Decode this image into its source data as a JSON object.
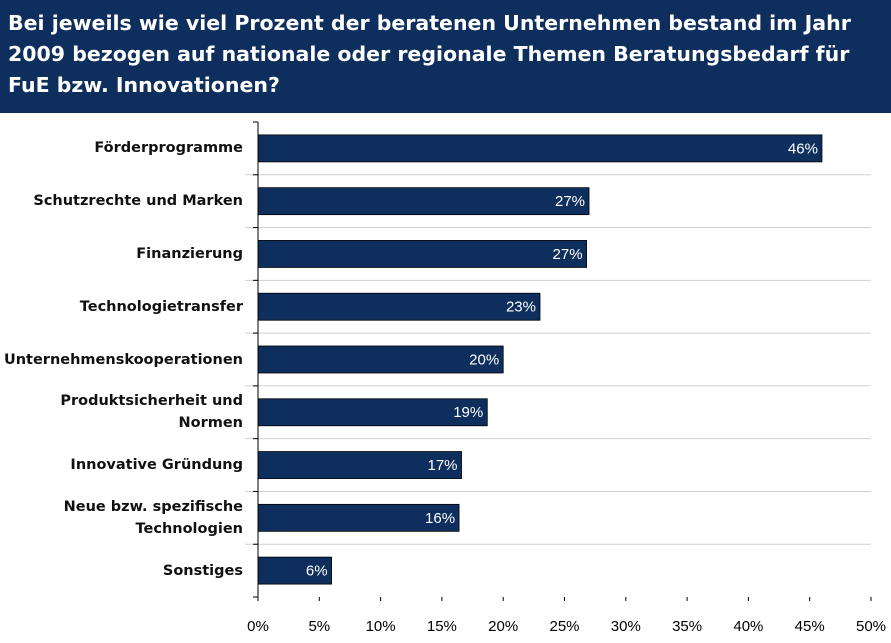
{
  "chart_data": {
    "type": "bar",
    "orientation": "horizontal",
    "title": "Bei jeweils wie viel Prozent der beratenen Unternehmen bestand im Jahr 2009 bezogen auf nationale oder regionale Themen Beratungsbedarf für FuE bzw. Innovationen?",
    "categories": [
      "Förderprogramme",
      "Schutzrechte und Marken",
      "Finanzierung",
      "Technologietransfer",
      "Unternehmenskooperationen",
      "Produktsicherheit und Normen",
      "Innovative Gründung",
      "Neue bzw. spezifische Technologien",
      "Sonstiges"
    ],
    "values": [
      46,
      27,
      26.8,
      23,
      20,
      18.7,
      16.6,
      16.4,
      6
    ],
    "value_labels": [
      "46%",
      "27%",
      "27%",
      "23%",
      "20%",
      "19%",
      "17%",
      "16%",
      "6%"
    ],
    "color": "#0e2f5e",
    "xlim": [
      0,
      50
    ],
    "xticks": [
      {
        "value": 0,
        "label": "0%"
      },
      {
        "value": 5,
        "label": "5%"
      },
      {
        "value": 10,
        "label": "10%"
      },
      {
        "value": 15,
        "label": "15%"
      },
      {
        "value": 20,
        "label": "20%"
      },
      {
        "value": 25,
        "label": "25%"
      },
      {
        "value": 30,
        "label": "30%"
      },
      {
        "value": 35,
        "label": "35%"
      },
      {
        "value": 40,
        "label": "40%"
      },
      {
        "value": 45,
        "label": "45%"
      },
      {
        "value": 50,
        "label": "50%"
      }
    ]
  }
}
